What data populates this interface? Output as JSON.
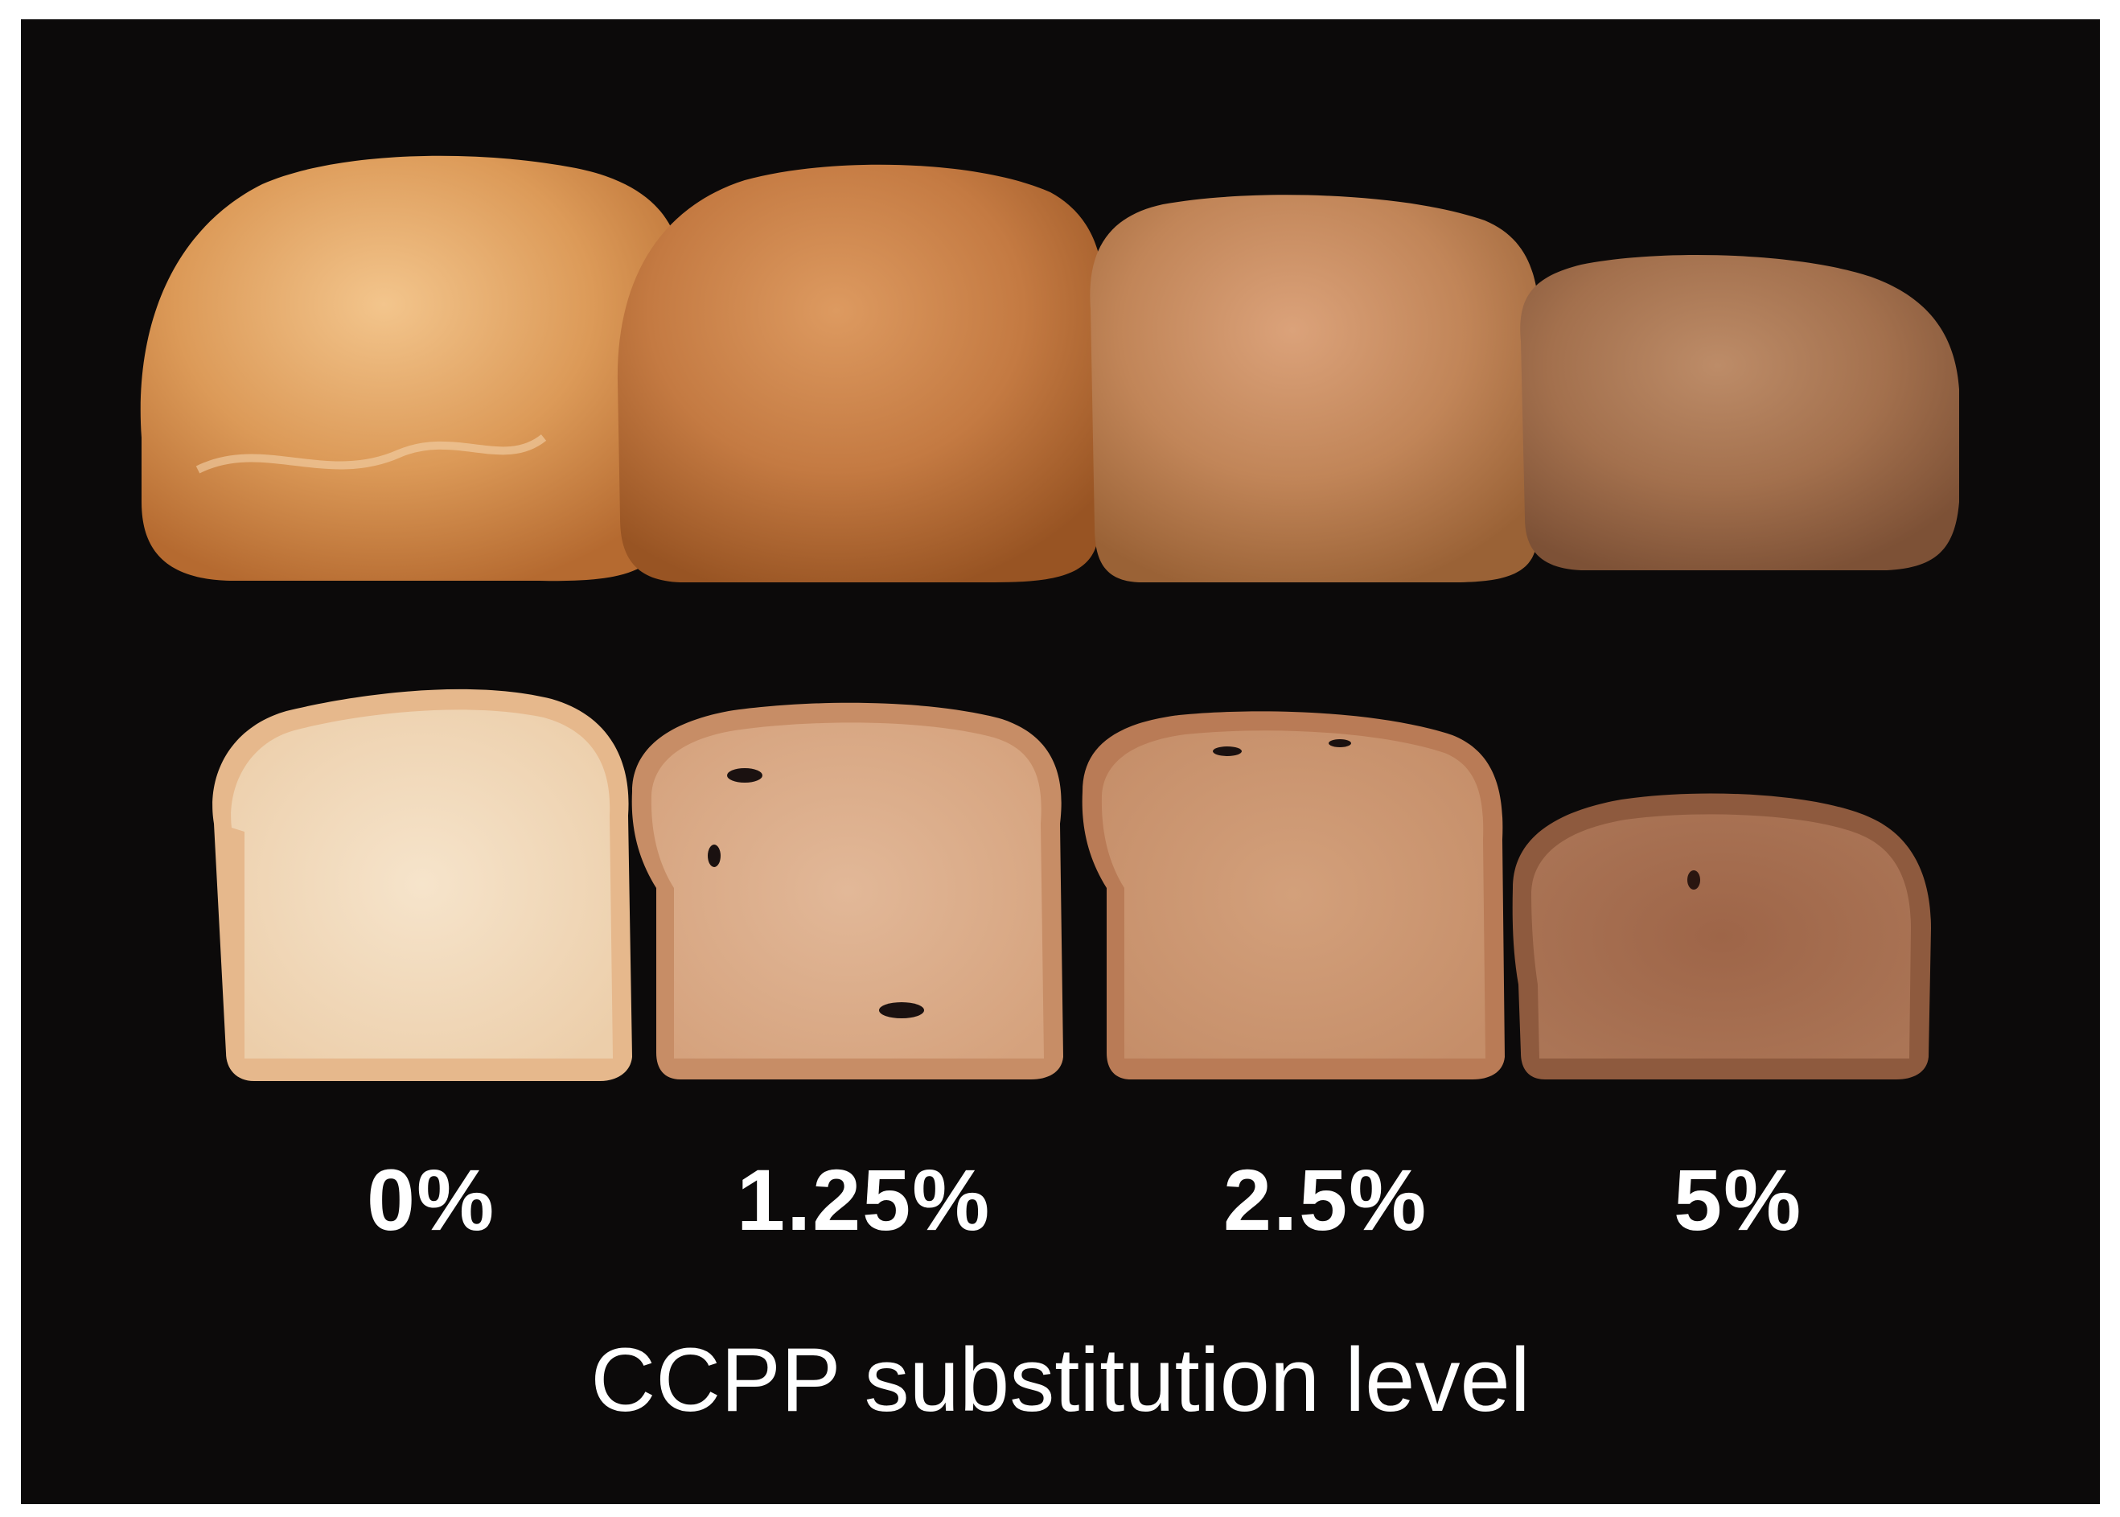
{
  "figure": {
    "samples": [
      {
        "label": "0%"
      },
      {
        "label": "1.25%"
      },
      {
        "label": "2.5%"
      },
      {
        "label": "5%"
      }
    ],
    "caption": "CCPP substitution level",
    "colors": {
      "background": "#0c0a0a",
      "text": "#ffffff",
      "crust_0": "#e0a062",
      "crust_1_25": "#c9804a",
      "crust_2_5": "#c2895a",
      "crust_5": "#a67350",
      "crumb_0": "#f1d9bb",
      "crumb_1_25": "#d9a985",
      "crumb_2_5": "#c99470",
      "crumb_5": "#a56d50"
    }
  }
}
